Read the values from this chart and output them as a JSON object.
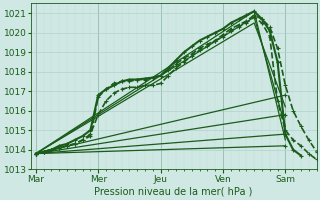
{
  "xlabel": "Pression niveau de la mer( hPa )",
  "bg_color": "#d0e8e4",
  "grid_major_color": "#b0d0cc",
  "grid_minor_color": "#c4deda",
  "line_color": "#1a5c1a",
  "ylim": [
    1013.0,
    1021.5
  ],
  "yticks": [
    1013,
    1014,
    1015,
    1016,
    1017,
    1018,
    1019,
    1020,
    1021
  ],
  "day_labels": [
    "Mar",
    "Mer",
    "Jeu",
    "Ven",
    "Sam"
  ],
  "day_positions": [
    0,
    48,
    96,
    144,
    192
  ],
  "total_hours": 216,
  "lines": [
    {
      "points": [
        [
          0,
          1013.8
        ],
        [
          6,
          1013.9
        ],
        [
          12,
          1014.0
        ],
        [
          18,
          1014.1
        ],
        [
          24,
          1014.2
        ],
        [
          30,
          1014.3
        ],
        [
          36,
          1014.5
        ],
        [
          42,
          1014.7
        ],
        [
          48,
          1016.7
        ],
        [
          54,
          1017.1
        ],
        [
          60,
          1017.4
        ],
        [
          66,
          1017.5
        ],
        [
          72,
          1017.5
        ],
        [
          78,
          1017.6
        ],
        [
          84,
          1017.6
        ],
        [
          90,
          1017.7
        ],
        [
          96,
          1017.8
        ],
        [
          102,
          1018.1
        ],
        [
          108,
          1018.4
        ],
        [
          114,
          1018.7
        ],
        [
          120,
          1018.9
        ],
        [
          126,
          1019.2
        ],
        [
          132,
          1019.4
        ],
        [
          138,
          1019.6
        ],
        [
          144,
          1019.8
        ],
        [
          150,
          1020.1
        ],
        [
          156,
          1020.3
        ],
        [
          162,
          1020.5
        ],
        [
          168,
          1020.8
        ],
        [
          174,
          1020.5
        ],
        [
          180,
          1019.8
        ],
        [
          186,
          1016.5
        ],
        [
          192,
          1015.0
        ],
        [
          198,
          1014.5
        ],
        [
          204,
          1014.2
        ],
        [
          210,
          1013.8
        ],
        [
          216,
          1013.5
        ]
      ],
      "dashed": true,
      "marker": true,
      "lw": 1.2
    },
    {
      "points": [
        [
          0,
          1013.8
        ],
        [
          6,
          1013.9
        ],
        [
          12,
          1014.0
        ],
        [
          18,
          1014.1
        ],
        [
          24,
          1014.2
        ],
        [
          30,
          1014.3
        ],
        [
          36,
          1014.5
        ],
        [
          42,
          1014.8
        ],
        [
          48,
          1015.8
        ],
        [
          54,
          1016.5
        ],
        [
          60,
          1016.9
        ],
        [
          66,
          1017.1
        ],
        [
          72,
          1017.2
        ],
        [
          78,
          1017.2
        ],
        [
          84,
          1017.3
        ],
        [
          90,
          1017.3
        ],
        [
          96,
          1017.4
        ],
        [
          102,
          1017.8
        ],
        [
          108,
          1018.2
        ],
        [
          114,
          1018.5
        ],
        [
          120,
          1018.8
        ],
        [
          126,
          1019.1
        ],
        [
          132,
          1019.3
        ],
        [
          138,
          1019.6
        ],
        [
          144,
          1019.9
        ],
        [
          150,
          1020.2
        ],
        [
          156,
          1020.4
        ],
        [
          162,
          1020.6
        ],
        [
          168,
          1020.9
        ],
        [
          174,
          1020.7
        ],
        [
          180,
          1020.3
        ],
        [
          186,
          1019.2
        ],
        [
          192,
          1017.3
        ],
        [
          198,
          1016.0
        ],
        [
          204,
          1015.2
        ],
        [
          210,
          1014.5
        ],
        [
          216,
          1013.9
        ]
      ],
      "dashed": true,
      "marker": true,
      "lw": 1.2
    },
    {
      "points": [
        [
          0,
          1013.8
        ],
        [
          168,
          1021.1
        ],
        [
          192,
          1014.5
        ]
      ],
      "dashed": false,
      "marker": false,
      "lw": 0.9
    },
    {
      "points": [
        [
          0,
          1013.8
        ],
        [
          168,
          1020.8
        ],
        [
          192,
          1015.2
        ]
      ],
      "dashed": false,
      "marker": false,
      "lw": 0.9
    },
    {
      "points": [
        [
          0,
          1013.8
        ],
        [
          168,
          1020.5
        ],
        [
          192,
          1016.2
        ]
      ],
      "dashed": false,
      "marker": false,
      "lw": 0.9
    },
    {
      "points": [
        [
          0,
          1013.8
        ],
        [
          192,
          1016.8
        ]
      ],
      "dashed": false,
      "marker": true,
      "lw": 0.9
    },
    {
      "points": [
        [
          0,
          1013.8
        ],
        [
          192,
          1015.8
        ]
      ],
      "dashed": false,
      "marker": true,
      "lw": 0.9
    },
    {
      "points": [
        [
          0,
          1013.8
        ],
        [
          192,
          1014.8
        ]
      ],
      "dashed": false,
      "marker": true,
      "lw": 0.9
    },
    {
      "points": [
        [
          0,
          1013.8
        ],
        [
          192,
          1014.2
        ]
      ],
      "dashed": false,
      "marker": true,
      "lw": 0.9
    },
    {
      "points": [
        [
          0,
          1013.8
        ],
        [
          6,
          1013.9
        ],
        [
          12,
          1014.0
        ],
        [
          18,
          1014.2
        ],
        [
          24,
          1014.3
        ],
        [
          30,
          1014.5
        ],
        [
          36,
          1014.7
        ],
        [
          42,
          1015.0
        ],
        [
          48,
          1016.8
        ],
        [
          54,
          1017.1
        ],
        [
          60,
          1017.3
        ],
        [
          66,
          1017.5
        ],
        [
          72,
          1017.6
        ],
        [
          78,
          1017.6
        ],
        [
          84,
          1017.65
        ],
        [
          90,
          1017.7
        ],
        [
          96,
          1017.8
        ],
        [
          102,
          1018.2
        ],
        [
          108,
          1018.6
        ],
        [
          114,
          1019.0
        ],
        [
          120,
          1019.3
        ],
        [
          126,
          1019.6
        ],
        [
          132,
          1019.8
        ],
        [
          138,
          1020.0
        ],
        [
          144,
          1020.2
        ],
        [
          150,
          1020.5
        ],
        [
          156,
          1020.7
        ],
        [
          162,
          1020.9
        ],
        [
          168,
          1021.1
        ],
        [
          174,
          1020.7
        ],
        [
          180,
          1020.1
        ],
        [
          186,
          1018.5
        ],
        [
          192,
          1014.8
        ],
        [
          198,
          1014.0
        ],
        [
          204,
          1013.7
        ]
      ],
      "dashed": false,
      "marker": true,
      "lw": 1.5
    }
  ]
}
